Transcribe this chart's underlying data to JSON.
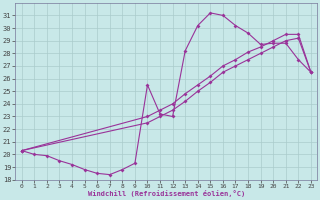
{
  "xlabel": "Windchill (Refroidissement éolien,°C)",
  "bg_color": "#c8e8e8",
  "grid_color": "#aacccc",
  "line_color": "#993399",
  "xlim": [
    -0.5,
    23.5
  ],
  "ylim": [
    18,
    32
  ],
  "xticks": [
    0,
    1,
    2,
    3,
    4,
    5,
    6,
    7,
    8,
    9,
    10,
    11,
    12,
    13,
    14,
    15,
    16,
    17,
    18,
    19,
    20,
    21,
    22,
    23
  ],
  "yticks": [
    18,
    19,
    20,
    21,
    22,
    23,
    24,
    25,
    26,
    27,
    28,
    29,
    30,
    31
  ],
  "line1_x": [
    0,
    1,
    2,
    3,
    4,
    5,
    6,
    7,
    8,
    9,
    10,
    11,
    12,
    13,
    14,
    15,
    16,
    17,
    18,
    19,
    20,
    21,
    22,
    23
  ],
  "line1_y": [
    20.3,
    20.0,
    19.9,
    19.5,
    19.2,
    18.8,
    18.5,
    18.4,
    18.8,
    19.3,
    25.5,
    23.2,
    23.0,
    28.2,
    30.2,
    31.2,
    31.0,
    30.2,
    29.6,
    28.7,
    28.8,
    28.8,
    27.5,
    26.5
  ],
  "line2_x": [
    0,
    10,
    11,
    12,
    13,
    14,
    15,
    16,
    17,
    18,
    19,
    20,
    21,
    22,
    23
  ],
  "line2_y": [
    20.3,
    23.0,
    23.5,
    24.0,
    24.8,
    25.5,
    26.2,
    27.0,
    27.5,
    28.1,
    28.5,
    29.0,
    29.5,
    29.5,
    26.5
  ],
  "line3_x": [
    0,
    10,
    11,
    12,
    13,
    14,
    15,
    16,
    17,
    18,
    19,
    20,
    21,
    22,
    23
  ],
  "line3_y": [
    20.3,
    22.5,
    23.0,
    23.5,
    24.2,
    25.0,
    25.7,
    26.5,
    27.0,
    27.5,
    28.0,
    28.5,
    29.0,
    29.2,
    26.5
  ]
}
